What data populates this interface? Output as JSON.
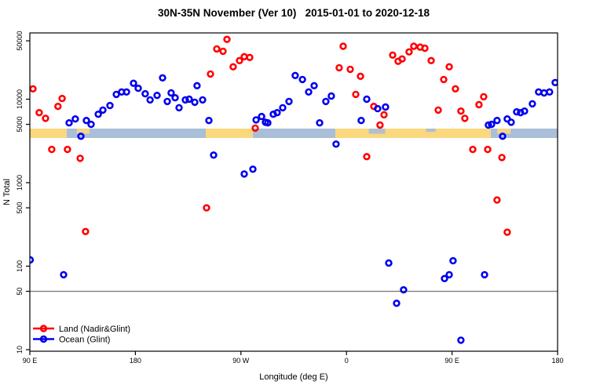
{
  "chart_data": {
    "type": "scatter",
    "title": "30N-35N November (Ver 10)   2015-01-01 to 2020-12-18",
    "xlabel": "Longitude (deg E)",
    "ylabel": "N Total",
    "x_axis": {
      "range_deg": [
        90,
        540
      ],
      "ticks_deg": [
        90,
        180,
        270,
        360,
        450,
        540
      ],
      "tick_labels": [
        "90 E",
        "180",
        "90 W",
        "0",
        "90 E",
        "180"
      ]
    },
    "y_axis": {
      "scale": "log",
      "ticks": [
        10,
        50,
        100,
        500,
        1000,
        5000,
        10000,
        50000
      ],
      "tick_labels": [
        "10",
        "50",
        "100",
        "500",
        "1000",
        "5000",
        "10000",
        "50000"
      ],
      "range": [
        10,
        68000
      ],
      "reference_line_value": 50,
      "reference_line_color": "#7d7d7d"
    },
    "legend": {
      "items": [
        {
          "label": "Land (Nadir&Glint)",
          "color": "#ff0000"
        },
        {
          "label": "Ocean (Glint)",
          "color": "#0000ee"
        }
      ]
    },
    "map_band": {
      "description": "land/ocean surface-type strip drawn across the plot near N=4000",
      "land_color": "#fad87e",
      "ocean_color": "#a9bed9",
      "base_segments": [
        {
          "from_deg": 90,
          "to_deg": 121.5,
          "surface": "land"
        },
        {
          "from_deg": 121.5,
          "to_deg": 240,
          "surface": "ocean"
        },
        {
          "from_deg": 240,
          "to_deg": 280.2,
          "surface": "land"
        },
        {
          "from_deg": 280.2,
          "to_deg": 350.5,
          "surface": "ocean"
        },
        {
          "from_deg": 350.5,
          "to_deg": 483,
          "surface": "land"
        },
        {
          "from_deg": 483,
          "to_deg": 540,
          "surface": "ocean"
        }
      ],
      "top_patches": [
        {
          "from_deg": 130,
          "to_deg": 141,
          "surface": "land",
          "frac": 0.55
        },
        {
          "from_deg": 379,
          "to_deg": 393,
          "surface": "ocean",
          "frac": 0.55
        },
        {
          "from_deg": 428,
          "to_deg": 436,
          "surface": "ocean",
          "frac": 0.35
        },
        {
          "from_deg": 488.5,
          "to_deg": 500,
          "surface": "land",
          "frac": 0.55
        }
      ]
    },
    "series": [
      {
        "name": "Land (Nadir&Glint)",
        "color": "#ff0000",
        "points": [
          [
            92.7,
            13300
          ],
          [
            98.0,
            6900
          ],
          [
            103.4,
            5900
          ],
          [
            108.7,
            2500
          ],
          [
            114.0,
            8200
          ],
          [
            117.5,
            10200
          ],
          [
            122.1,
            2500
          ],
          [
            132.9,
            1960
          ],
          [
            137.5,
            260
          ],
          [
            240.7,
            500
          ],
          [
            244.0,
            20000
          ],
          [
            249.4,
            40000
          ],
          [
            254.7,
            37500
          ],
          [
            258.1,
            52000
          ],
          [
            263.4,
            24400
          ],
          [
            268.8,
            29000
          ],
          [
            272.8,
            32300
          ],
          [
            277.5,
            31600
          ],
          [
            282.2,
            4500
          ],
          [
            353.8,
            23800
          ],
          [
            357.2,
            43000
          ],
          [
            363.2,
            22800
          ],
          [
            367.9,
            11400
          ],
          [
            371.9,
            18800
          ],
          [
            377.3,
            2050
          ],
          [
            383.3,
            8200
          ],
          [
            388.6,
            4900
          ],
          [
            392.0,
            6500
          ],
          [
            399.4,
            33700
          ],
          [
            404.0,
            28400
          ],
          [
            407.4,
            30300
          ],
          [
            413.4,
            36800
          ],
          [
            417.4,
            43000
          ],
          [
            422.8,
            42000
          ],
          [
            426.8,
            40800
          ],
          [
            432.2,
            29000
          ],
          [
            438.2,
            7400
          ],
          [
            442.9,
            17200
          ],
          [
            447.6,
            24400
          ],
          [
            452.9,
            13300
          ],
          [
            457.6,
            7200
          ],
          [
            460.9,
            5900
          ],
          [
            467.7,
            2500
          ],
          [
            473.0,
            8600
          ],
          [
            477.0,
            10700
          ],
          [
            480.4,
            2500
          ],
          [
            488.4,
            620
          ],
          [
            492.5,
            2000
          ],
          [
            497.1,
            255
          ]
        ]
      },
      {
        "name": "Ocean (Glint)",
        "color": "#0000ee",
        "points": [
          [
            90.3,
            119
          ],
          [
            118.8,
            79
          ],
          [
            123.5,
            5200
          ],
          [
            128.8,
            5800
          ],
          [
            133.5,
            3600
          ],
          [
            138.2,
            5550
          ],
          [
            142.2,
            5000
          ],
          [
            148.3,
            6600
          ],
          [
            152.3,
            7400
          ],
          [
            158.3,
            8400
          ],
          [
            163.7,
            11400
          ],
          [
            168.3,
            12200
          ],
          [
            172.4,
            12200
          ],
          [
            178.4,
            15500
          ],
          [
            182.4,
            13500
          ],
          [
            188.4,
            11600
          ],
          [
            192.5,
            9800
          ],
          [
            198.5,
            11100
          ],
          [
            203.2,
            18000
          ],
          [
            207.2,
            9400
          ],
          [
            210.5,
            11900
          ],
          [
            213.9,
            10400
          ],
          [
            217.2,
            7900
          ],
          [
            222.6,
            9800
          ],
          [
            225.9,
            10000
          ],
          [
            230.6,
            9200
          ],
          [
            232.6,
            14500
          ],
          [
            237.3,
            9800
          ],
          [
            242.7,
            5550
          ],
          [
            246.7,
            2140
          ],
          [
            272.8,
            1270
          ],
          [
            280.2,
            1450
          ],
          [
            282.9,
            5650
          ],
          [
            287.6,
            6200
          ],
          [
            290.9,
            5300
          ],
          [
            292.9,
            5200
          ],
          [
            297.6,
            6600
          ],
          [
            300.9,
            6900
          ],
          [
            305.6,
            7900
          ],
          [
            311.0,
            9400
          ],
          [
            316.3,
            19200
          ],
          [
            322.4,
            17200
          ],
          [
            327.7,
            12200
          ],
          [
            332.4,
            14500
          ],
          [
            337.1,
            5200
          ],
          [
            342.4,
            9400
          ],
          [
            347.1,
            10900
          ],
          [
            351.1,
            2900
          ],
          [
            372.5,
            5550
          ],
          [
            377.3,
            10000
          ],
          [
            386.6,
            7700
          ],
          [
            393.3,
            8050
          ],
          [
            396.0,
            109
          ],
          [
            402.7,
            36
          ],
          [
            408.7,
            52
          ],
          [
            443.6,
            71
          ],
          [
            447.6,
            79
          ],
          [
            450.9,
            116
          ],
          [
            457.6,
            13
          ],
          [
            477.7,
            79
          ],
          [
            481.0,
            4900
          ],
          [
            483.7,
            5000
          ],
          [
            488.4,
            5550
          ],
          [
            493.1,
            3600
          ],
          [
            497.1,
            5800
          ],
          [
            500.4,
            5300
          ],
          [
            505.1,
            7050
          ],
          [
            508.4,
            6900
          ],
          [
            511.8,
            7200
          ],
          [
            518.5,
            8800
          ],
          [
            523.8,
            12200
          ],
          [
            528.5,
            11900
          ],
          [
            533.2,
            12200
          ],
          [
            537.9,
            15800
          ]
        ]
      }
    ],
    "marker": {
      "shape": "open-circle",
      "radius": 3.4,
      "stroke_width": 2.6
    }
  }
}
